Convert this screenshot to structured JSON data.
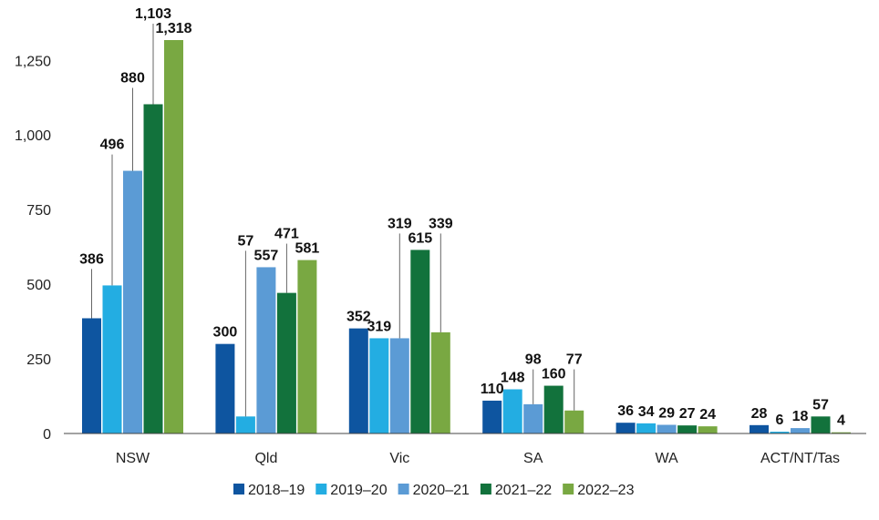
{
  "chart_data": {
    "type": "bar",
    "title": "",
    "xlabel": "",
    "ylabel": "",
    "ylim": [
      0,
      1318
    ],
    "yticks": [
      0,
      250,
      500,
      750,
      1000,
      1250
    ],
    "ytick_labels": [
      "0",
      "250",
      "500",
      "750",
      "1,000",
      "1,250"
    ],
    "grid": false,
    "legend_position": "bottom",
    "categories": [
      "NSW",
      "Qld",
      "Vic",
      "SA",
      "WA",
      "ACT/NT/Tas"
    ],
    "series": [
      {
        "name": "2018–19",
        "color": "#0e55a0",
        "values": [
          386,
          300,
          352,
          110,
          36,
          28
        ],
        "labels": [
          "386",
          "300",
          "352",
          "110",
          "36",
          "28"
        ]
      },
      {
        "name": "2019–20",
        "color": "#23ade2",
        "values": [
          496,
          57,
          319,
          148,
          34,
          6
        ],
        "labels": [
          "496",
          "57",
          "319",
          "148",
          "34",
          "6"
        ]
      },
      {
        "name": "2020–21",
        "color": "#5b9bd5",
        "values": [
          880,
          557,
          319,
          98,
          29,
          18
        ],
        "labels": [
          "880",
          "557",
          "319",
          "98",
          "29",
          "18"
        ]
      },
      {
        "name": "2021–22",
        "color": "#12723c",
        "values": [
          1103,
          471,
          615,
          160,
          27,
          57
        ],
        "labels": [
          "1,103",
          "471",
          "615",
          "160",
          "27",
          "57"
        ]
      },
      {
        "name": "2022–23",
        "color": "#79a842",
        "values": [
          1318,
          581,
          339,
          77,
          24,
          4
        ],
        "labels": [
          "1,318",
          "581",
          "339",
          "77",
          "24",
          "4"
        ]
      }
    ]
  }
}
